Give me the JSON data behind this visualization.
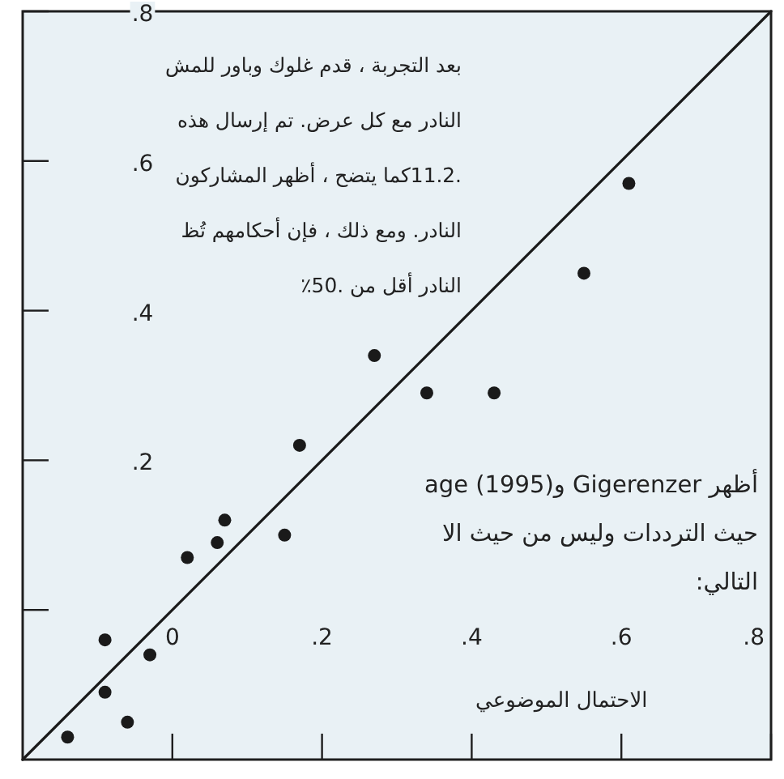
{
  "chart_data": {
    "type": "scatter",
    "xlabel": "الاحتمال الموضوعي",
    "xlim": [
      -0.2,
      0.8
    ],
    "ylim": [
      -0.2,
      0.8
    ],
    "xticks": [
      {
        "value": 0,
        "label": "0"
      },
      {
        "value": 0.2,
        "label": ".2"
      },
      {
        "value": 0.4,
        "label": ".4"
      },
      {
        "value": 0.6,
        "label": ".6"
      },
      {
        "value": 0.8,
        "label": ".8"
      }
    ],
    "yticks": [
      {
        "value": 0,
        "label": null
      },
      {
        "value": 0.2,
        "label": ".2"
      },
      {
        "value": 0.4,
        "label": ".4"
      },
      {
        "value": 0.6,
        "label": ".6"
      },
      {
        "value": 0.8,
        "label": ".8"
      }
    ],
    "series": [
      {
        "type": "scatter",
        "marker": "circle",
        "color": "#1a1a1a",
        "x": [
          -0.14,
          -0.09,
          -0.09,
          -0.06,
          -0.03,
          0.02,
          0.06,
          0.07,
          0.15,
          0.17,
          0.27,
          0.34,
          0.43,
          0.55,
          0.61
        ],
        "values": [
          -0.17,
          -0.04,
          -0.11,
          -0.15,
          -0.06,
          0.07,
          0.09,
          0.12,
          0.1,
          0.22,
          0.34,
          0.29,
          0.29,
          0.45,
          0.57
        ]
      },
      {
        "type": "line",
        "color": "#1a1a1a",
        "x": [
          -0.2,
          0.8
        ],
        "values": [
          -0.2,
          0.8
        ]
      }
    ],
    "annotations": [
      "بعد التجربة ، قدم غلوك وباور للمش\nالنادر مع كل عرض. تم إرسال هذه\n.11.2كما يتضح ، أظهر المشاركون\nالنادر. ومع ذلك ، فإن أحكامهم تُظ\nالنادر أقل من .50٪",
      "أظهر Gigerenzer وage (1995)\nحيث الترددات وليس من حيث الا\nالتالي:"
    ]
  }
}
